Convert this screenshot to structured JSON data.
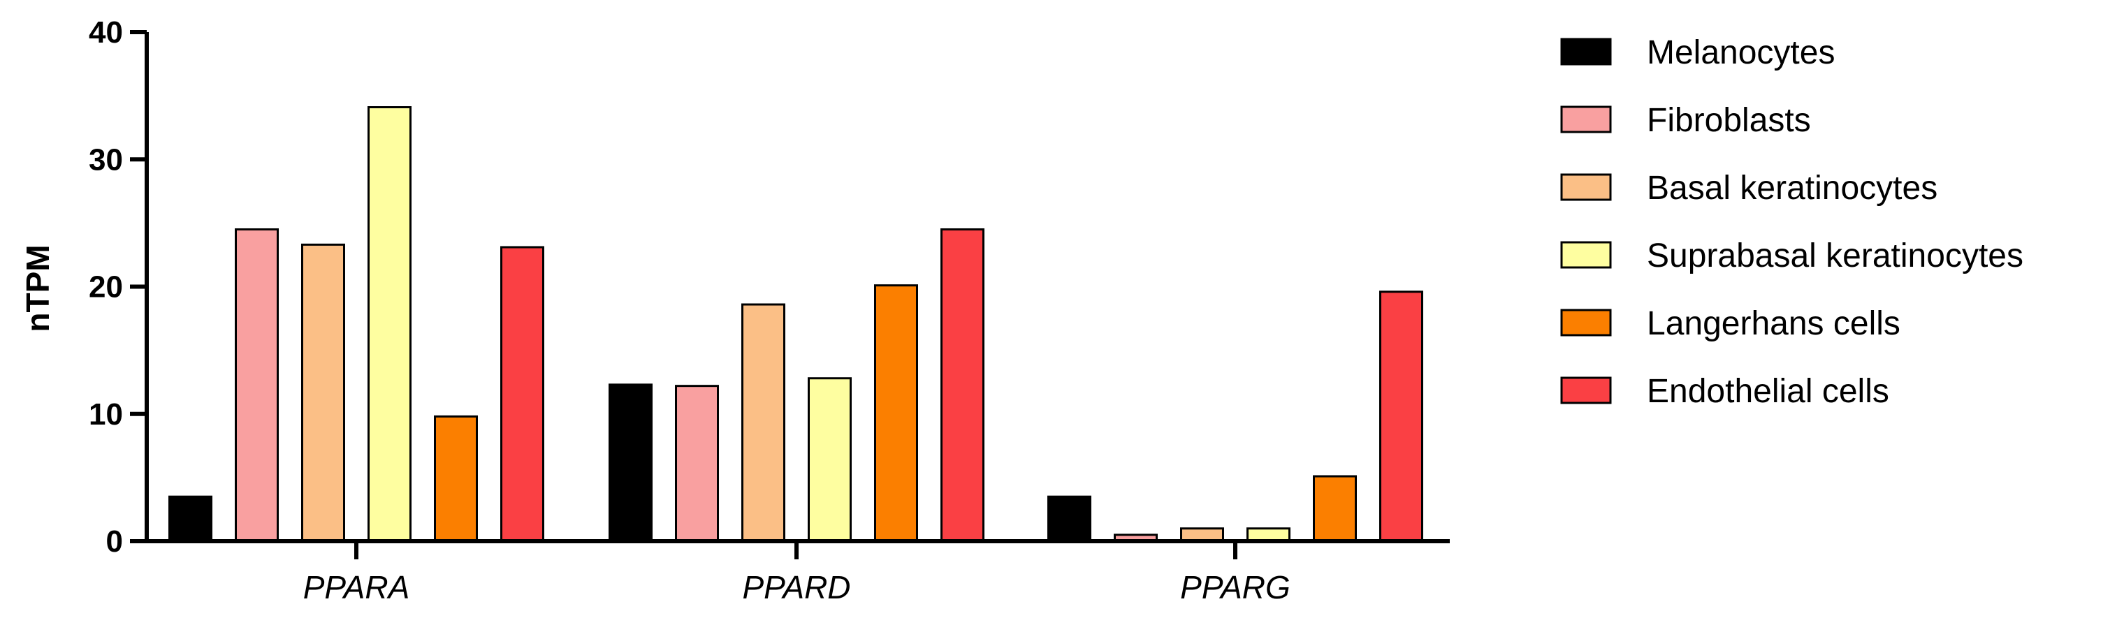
{
  "chart_data": {
    "type": "bar",
    "title": "",
    "xlabel": "",
    "ylabel": "nTPM",
    "ylim": [
      0,
      40
    ],
    "yticks": [
      0,
      10,
      20,
      30,
      40
    ],
    "grid": false,
    "legend_position": "right",
    "categories": [
      "PPARA",
      "PPARD",
      "PPARG"
    ],
    "series": [
      {
        "name": "Melanocytes",
        "color": "#000000",
        "values": [
          3.5,
          12.3,
          3.5
        ]
      },
      {
        "name": "Fibroblasts",
        "color": "#f9a0a0",
        "values": [
          24.5,
          12.2,
          0.5
        ]
      },
      {
        "name": "Basal keratinocytes",
        "color": "#fbbf86",
        "values": [
          23.3,
          18.6,
          1.0
        ]
      },
      {
        "name": "Suprabasal keratinocytes",
        "color": "#fefea0",
        "values": [
          34.1,
          12.8,
          1.0
        ]
      },
      {
        "name": "Langerhans cells",
        "color": "#fb7f00",
        "values": [
          9.8,
          20.1,
          5.1
        ]
      },
      {
        "name": "Endothelial cells",
        "color": "#fa4044",
        "values": [
          23.1,
          24.5,
          19.6
        ]
      }
    ]
  }
}
